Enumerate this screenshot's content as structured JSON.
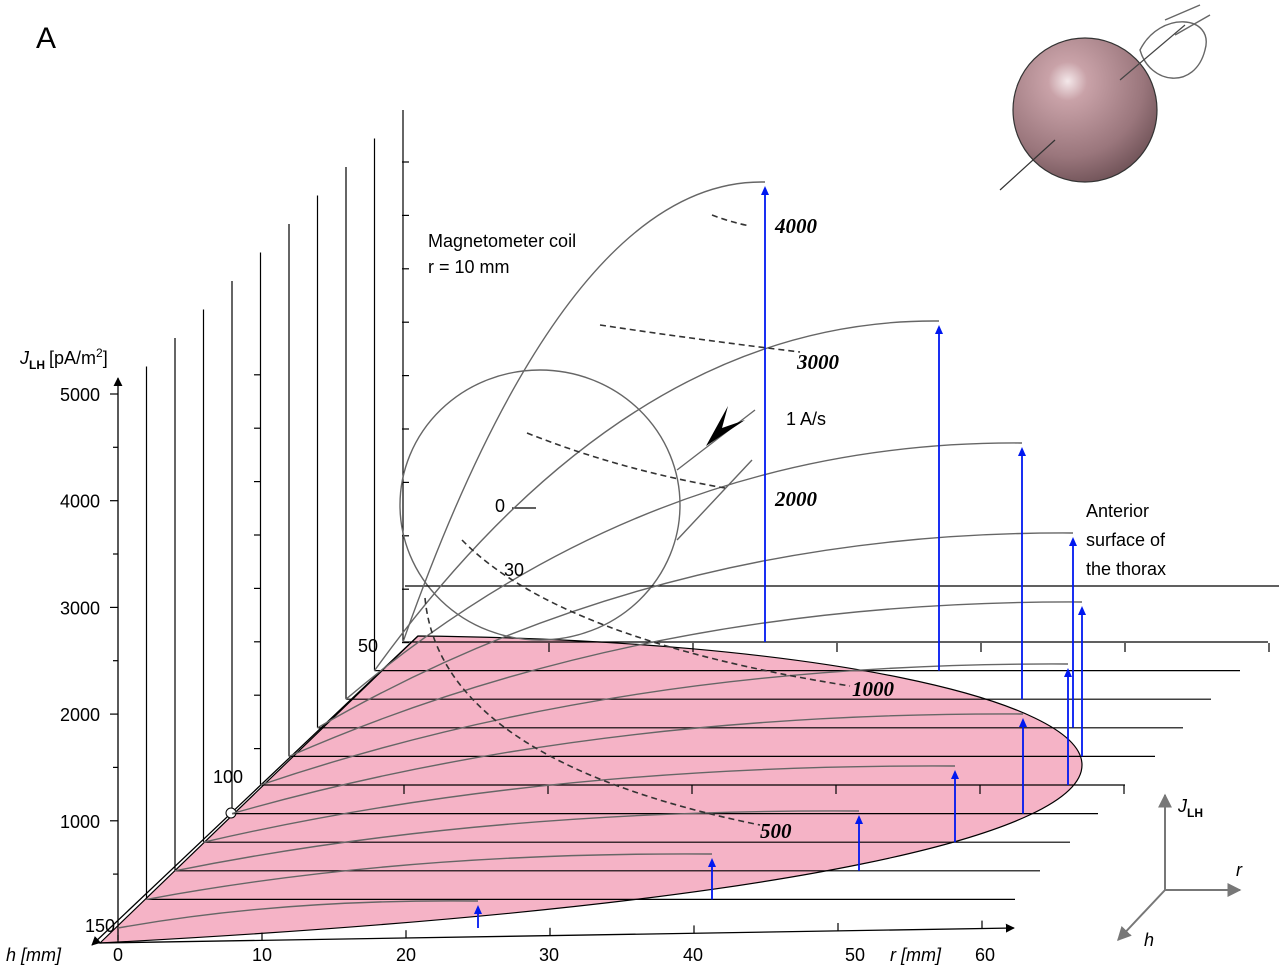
{
  "panel_label": "A",
  "axes": {
    "j": {
      "symbol": "J",
      "subscript": "LH",
      "unit": "[pA/m",
      "unit_exponent": "2",
      "unit_close": "]",
      "ticks": [
        5000,
        4000,
        3000,
        2000,
        1000
      ]
    },
    "r": {
      "label": "r [mm]",
      "ticks": [
        0,
        10,
        20,
        30,
        40,
        50,
        60
      ]
    },
    "h": {
      "label": "h [mm]",
      "ticks": [
        150,
        100,
        50,
        30,
        0
      ]
    }
  },
  "contour_labels": [
    4000,
    3000,
    2000,
    1000,
    500
  ],
  "annotations": {
    "coil": [
      "Magnetometer coil",
      "r = 10 mm"
    ],
    "rate": "1 A/s",
    "surface": [
      "Anterior",
      "surface of",
      "the thorax"
    ]
  },
  "orientation_key": {
    "j_symbol": "J",
    "j_subscript": "LH",
    "r": "r",
    "h": "h"
  }
}
